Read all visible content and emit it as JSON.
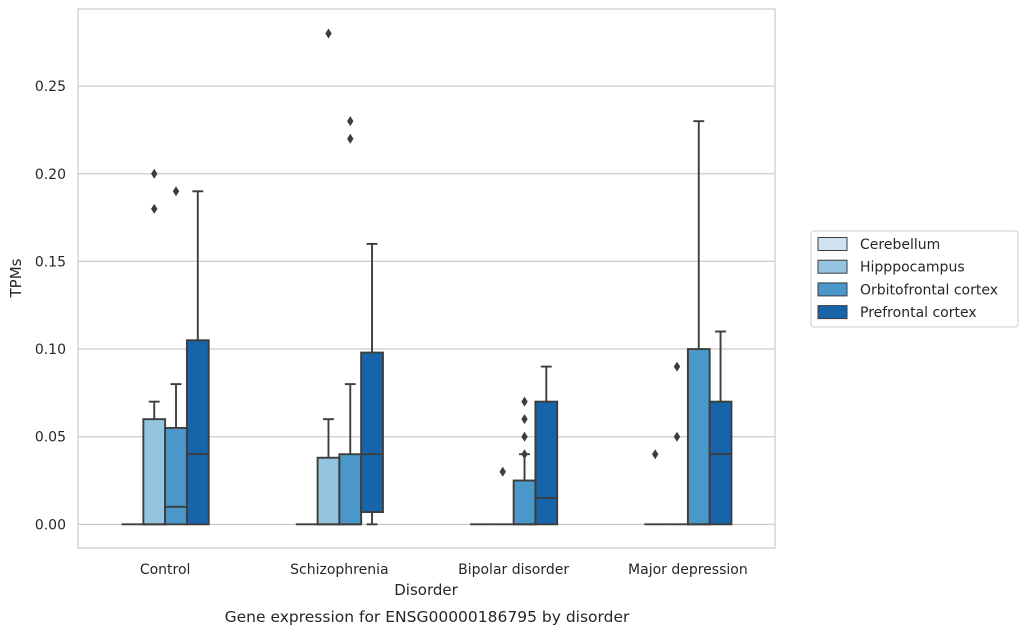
{
  "chart_data": {
    "type": "box",
    "caption": "Gene expression for ENSG00000186795 by disorder",
    "xlabel": "Disorder",
    "ylabel": "TPMs",
    "ylim": [
      -0.0135,
      0.294
    ],
    "yticks": [
      "0.00",
      "0.05",
      "0.10",
      "0.15",
      "0.20",
      "0.25"
    ],
    "grid": true,
    "legend_position": "right",
    "categories": [
      "Control",
      "Schizophrenia",
      "Bipolar disorder",
      "Major depression"
    ],
    "series": [
      {
        "name": "Cerebellum",
        "color": "#d0e1f2",
        "boxes": [
          {
            "q1": 0,
            "median": 0,
            "q3": 0,
            "low": 0,
            "high": 0,
            "outliers": []
          },
          {
            "q1": 0,
            "median": 0,
            "q3": 0,
            "low": 0,
            "high": 0,
            "outliers": []
          },
          {
            "q1": 0,
            "median": 0,
            "q3": 0,
            "low": 0,
            "high": 0,
            "outliers": []
          },
          {
            "q1": 0,
            "median": 0,
            "q3": 0,
            "low": 0,
            "high": 0,
            "outliers": [
              0.04
            ]
          }
        ]
      },
      {
        "name": "Hipppocampus",
        "color": "#94c4df",
        "boxes": [
          {
            "q1": 0,
            "median": 0,
            "q3": 0.06,
            "low": 0,
            "high": 0.07,
            "outliers": [
              0.18,
              0.2
            ]
          },
          {
            "q1": 0,
            "median": 0,
            "q3": 0.038,
            "low": 0,
            "high": 0.06,
            "outliers": [
              0.28
            ]
          },
          {
            "q1": 0,
            "median": 0,
            "q3": 0,
            "low": 0,
            "high": 0,
            "outliers": [
              0.03
            ]
          },
          {
            "q1": 0,
            "median": 0,
            "q3": 0,
            "low": 0,
            "high": 0,
            "outliers": [
              0.05,
              0.09
            ]
          }
        ]
      },
      {
        "name": "Orbitofrontal cortex",
        "color": "#4a98c9",
        "boxes": [
          {
            "q1": 0,
            "median": 0.01,
            "q3": 0.055,
            "low": 0,
            "high": 0.08,
            "outliers": [
              0.19
            ]
          },
          {
            "q1": 0,
            "median": 0,
            "q3": 0.04,
            "low": 0,
            "high": 0.08,
            "outliers": [
              0.22,
              0.23
            ]
          },
          {
            "q1": 0,
            "median": 0,
            "q3": 0.025,
            "low": 0,
            "high": 0.04,
            "outliers": [
              0.04,
              0.05,
              0.06,
              0.07
            ]
          },
          {
            "q1": 0,
            "median": 0,
            "q3": 0.1,
            "low": 0,
            "high": 0.23,
            "outliers": []
          }
        ]
      },
      {
        "name": "Prefrontal cortex",
        "color": "#1764ab",
        "boxes": [
          {
            "q1": 0,
            "median": 0.04,
            "q3": 0.105,
            "low": 0,
            "high": 0.19,
            "outliers": []
          },
          {
            "q1": 0.007,
            "median": 0.04,
            "q3": 0.098,
            "low": 0,
            "high": 0.16,
            "outliers": []
          },
          {
            "q1": 0,
            "median": 0.015,
            "q3": 0.07,
            "low": 0,
            "high": 0.09,
            "outliers": []
          },
          {
            "q1": 0,
            "median": 0.04,
            "q3": 0.07,
            "low": 0,
            "high": 0.11,
            "outliers": []
          }
        ]
      }
    ]
  }
}
